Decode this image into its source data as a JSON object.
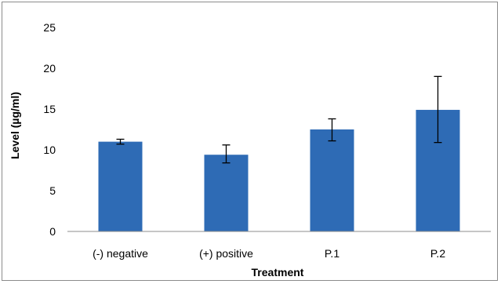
{
  "chart_data": {
    "type": "bar",
    "xlabel": "Treatment",
    "ylabel": "Level (µg/ml)",
    "categories": [
      "(-) negative",
      "(+) positive",
      "P.1",
      "P.2"
    ],
    "values": [
      11.0,
      9.4,
      12.5,
      14.9
    ],
    "error_low": [
      10.7,
      8.4,
      11.1,
      10.9
    ],
    "error_high": [
      11.3,
      10.6,
      13.8,
      19.0
    ],
    "ylim": [
      0,
      25
    ],
    "yticks": [
      0,
      5,
      10,
      15,
      20,
      25
    ],
    "grid": false,
    "legend": "none",
    "bar_color": "#2e6bb5",
    "error_bar_color": "#000000"
  }
}
